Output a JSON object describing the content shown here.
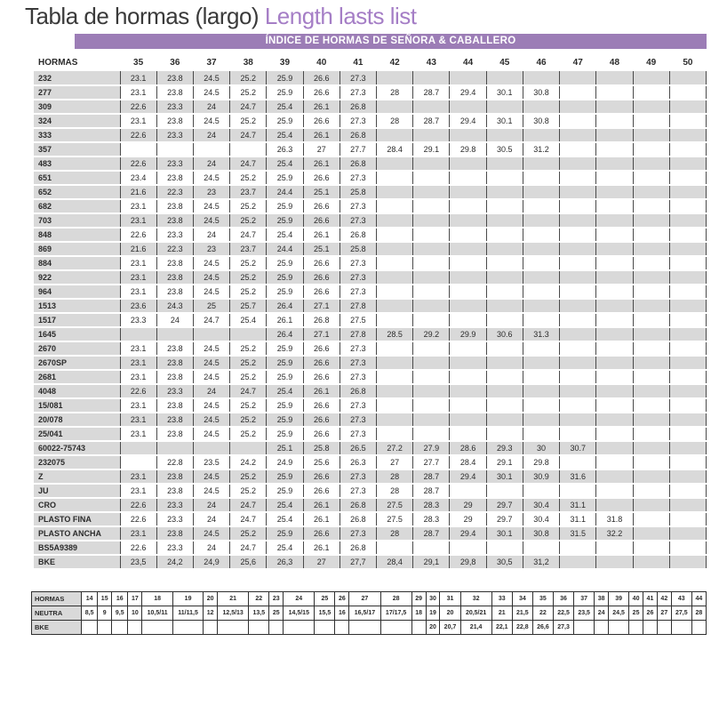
{
  "header": {
    "title_es": "Tabla de hormas (largo)",
    "title_en": "Length lasts list",
    "banner": "ÍNDICE DE HORMAS DE SEÑORA & CABALLERO"
  },
  "colors": {
    "banner_purple": "#9c7db6",
    "title_accent": "#a57ec6",
    "stripe_gray": "#d9d9d9"
  },
  "main_table": {
    "label_header": "HORMAS",
    "columns": [
      "35",
      "36",
      "37",
      "38",
      "39",
      "40",
      "41",
      "42",
      "43",
      "44",
      "45",
      "46",
      "47",
      "48",
      "49",
      "50"
    ],
    "rows": [
      {
        "label": "232",
        "values": [
          "23.1",
          "23.8",
          "24.5",
          "25.2",
          "25.9",
          "26.6",
          "27.3",
          "",
          "",
          "",
          "",
          "",
          "",
          "",
          "",
          ""
        ]
      },
      {
        "label": "277",
        "values": [
          "23.1",
          "23.8",
          "24.5",
          "25.2",
          "25.9",
          "26.6",
          "27.3",
          "28",
          "28.7",
          "29.4",
          "30.1",
          "30.8",
          "",
          "",
          "",
          ""
        ]
      },
      {
        "label": "309",
        "values": [
          "22.6",
          "23.3",
          "24",
          "24.7",
          "25.4",
          "26.1",
          "26.8",
          "",
          "",
          "",
          "",
          "",
          "",
          "",
          "",
          ""
        ]
      },
      {
        "label": "324",
        "values": [
          "23.1",
          "23.8",
          "24.5",
          "25.2",
          "25.9",
          "26.6",
          "27.3",
          "28",
          "28.7",
          "29.4",
          "30.1",
          "30.8",
          "",
          "",
          "",
          ""
        ]
      },
      {
        "label": "333",
        "values": [
          "22.6",
          "23.3",
          "24",
          "24.7",
          "25.4",
          "26.1",
          "26.8",
          "",
          "",
          "",
          "",
          "",
          "",
          "",
          "",
          ""
        ]
      },
      {
        "label": "357",
        "values": [
          "",
          "",
          "",
          "",
          "26.3",
          "27",
          "27.7",
          "28.4",
          "29.1",
          "29.8",
          "30.5",
          "31.2",
          "",
          "",
          "",
          ""
        ]
      },
      {
        "label": "483",
        "values": [
          "22.6",
          "23.3",
          "24",
          "24.7",
          "25.4",
          "26.1",
          "26.8",
          "",
          "",
          "",
          "",
          "",
          "",
          "",
          "",
          ""
        ]
      },
      {
        "label": "651",
        "values": [
          "23.4",
          "23.8",
          "24.5",
          "25.2",
          "25.9",
          "26.6",
          "27.3",
          "",
          "",
          "",
          "",
          "",
          "",
          "",
          "",
          ""
        ]
      },
      {
        "label": "652",
        "values": [
          "21.6",
          "22.3",
          "23",
          "23.7",
          "24.4",
          "25.1",
          "25.8",
          "",
          "",
          "",
          "",
          "",
          "",
          "",
          "",
          ""
        ]
      },
      {
        "label": "682",
        "values": [
          "23.1",
          "23.8",
          "24.5",
          "25.2",
          "25.9",
          "26.6",
          "27.3",
          "",
          "",
          "",
          "",
          "",
          "",
          "",
          "",
          ""
        ]
      },
      {
        "label": "703",
        "values": [
          "23.1",
          "23.8",
          "24.5",
          "25.2",
          "25.9",
          "26.6",
          "27.3",
          "",
          "",
          "",
          "",
          "",
          "",
          "",
          "",
          ""
        ]
      },
      {
        "label": "848",
        "values": [
          "22.6",
          "23.3",
          "24",
          "24.7",
          "25.4",
          "26.1",
          "26.8",
          "",
          "",
          "",
          "",
          "",
          "",
          "",
          "",
          ""
        ]
      },
      {
        "label": "869",
        "values": [
          "21.6",
          "22.3",
          "23",
          "23.7",
          "24.4",
          "25.1",
          "25.8",
          "",
          "",
          "",
          "",
          "",
          "",
          "",
          "",
          ""
        ]
      },
      {
        "label": "884",
        "values": [
          "23.1",
          "23.8",
          "24.5",
          "25.2",
          "25.9",
          "26.6",
          "27.3",
          "",
          "",
          "",
          "",
          "",
          "",
          "",
          "",
          ""
        ]
      },
      {
        "label": "922",
        "values": [
          "23.1",
          "23.8",
          "24.5",
          "25.2",
          "25.9",
          "26.6",
          "27.3",
          "",
          "",
          "",
          "",
          "",
          "",
          "",
          "",
          ""
        ]
      },
      {
        "label": "964",
        "values": [
          "23.1",
          "23.8",
          "24.5",
          "25.2",
          "25.9",
          "26.6",
          "27.3",
          "",
          "",
          "",
          "",
          "",
          "",
          "",
          "",
          ""
        ]
      },
      {
        "label": "1513",
        "values": [
          "23.6",
          "24.3",
          "25",
          "25.7",
          "26.4",
          "27.1",
          "27.8",
          "",
          "",
          "",
          "",
          "",
          "",
          "",
          "",
          ""
        ]
      },
      {
        "label": "1517",
        "values": [
          "23.3",
          "24",
          "24.7",
          "25.4",
          "26.1",
          "26.8",
          "27.5",
          "",
          "",
          "",
          "",
          "",
          "",
          "",
          "",
          ""
        ]
      },
      {
        "label": "1645",
        "values": [
          "",
          "",
          "",
          "",
          "26.4",
          "27.1",
          "27.8",
          "28.5",
          "29.2",
          "29.9",
          "30.6",
          "31.3",
          "",
          "",
          "",
          ""
        ]
      },
      {
        "label": "2670",
        "values": [
          "23.1",
          "23.8",
          "24.5",
          "25.2",
          "25.9",
          "26.6",
          "27.3",
          "",
          "",
          "",
          "",
          "",
          "",
          "",
          "",
          ""
        ]
      },
      {
        "label": "2670SP",
        "values": [
          "23.1",
          "23.8",
          "24.5",
          "25.2",
          "25.9",
          "26.6",
          "27.3",
          "",
          "",
          "",
          "",
          "",
          "",
          "",
          "",
          ""
        ]
      },
      {
        "label": "2681",
        "values": [
          "23.1",
          "23.8",
          "24.5",
          "25.2",
          "25.9",
          "26.6",
          "27.3",
          "",
          "",
          "",
          "",
          "",
          "",
          "",
          "",
          ""
        ]
      },
      {
        "label": "4048",
        "values": [
          "22.6",
          "23.3",
          "24",
          "24.7",
          "25.4",
          "26.1",
          "26.8",
          "",
          "",
          "",
          "",
          "",
          "",
          "",
          "",
          ""
        ]
      },
      {
        "label": "15/081",
        "values": [
          "23.1",
          "23.8",
          "24.5",
          "25.2",
          "25.9",
          "26.6",
          "27.3",
          "",
          "",
          "",
          "",
          "",
          "",
          "",
          "",
          ""
        ]
      },
      {
        "label": "20/078",
        "values": [
          "23.1",
          "23.8",
          "24.5",
          "25.2",
          "25.9",
          "26.6",
          "27.3",
          "",
          "",
          "",
          "",
          "",
          "",
          "",
          "",
          ""
        ]
      },
      {
        "label": "25/041",
        "values": [
          "23.1",
          "23.8",
          "24.5",
          "25.2",
          "25.9",
          "26.6",
          "27.3",
          "",
          "",
          "",
          "",
          "",
          "",
          "",
          "",
          ""
        ]
      },
      {
        "label": "60022-75743",
        "values": [
          "",
          "",
          "",
          "",
          "25.1",
          "25.8",
          "26.5",
          "27.2",
          "27.9",
          "28.6",
          "29.3",
          "30",
          "30.7",
          "",
          "",
          ""
        ]
      },
      {
        "label": "232075",
        "values": [
          "",
          "22.8",
          "23.5",
          "24.2",
          "24.9",
          "25.6",
          "26.3",
          "27",
          "27.7",
          "28.4",
          "29.1",
          "29.8",
          "",
          "",
          "",
          ""
        ]
      },
      {
        "label": "Z",
        "values": [
          "23.1",
          "23.8",
          "24.5",
          "25.2",
          "25.9",
          "26.6",
          "27.3",
          "28",
          "28.7",
          "29.4",
          "30.1",
          "30.9",
          "31.6",
          "",
          "",
          ""
        ]
      },
      {
        "label": "JU",
        "values": [
          "23.1",
          "23.8",
          "24.5",
          "25.2",
          "25.9",
          "26.6",
          "27.3",
          "28",
          "28.7",
          "",
          "",
          "",
          "",
          "",
          "",
          ""
        ]
      },
      {
        "label": "CRO",
        "values": [
          "22.6",
          "23.3",
          "24",
          "24.7",
          "25.4",
          "26.1",
          "26.8",
          "27.5",
          "28.3",
          "29",
          "29.7",
          "30.4",
          "31.1",
          "",
          "",
          ""
        ]
      },
      {
        "label": "PLASTO FINA",
        "values": [
          "22.6",
          "23.3",
          "24",
          "24.7",
          "25.4",
          "26.1",
          "26.8",
          "27.5",
          "28.3",
          "29",
          "29.7",
          "30.4",
          "31.1",
          "31.8",
          "",
          ""
        ]
      },
      {
        "label": "PLASTO ANCHA",
        "values": [
          "23.1",
          "23.8",
          "24.5",
          "25.2",
          "25.9",
          "26.6",
          "27.3",
          "28",
          "28.7",
          "29.4",
          "30.1",
          "30.8",
          "31.5",
          "32.2",
          "",
          ""
        ]
      },
      {
        "label": "BS5A9389",
        "values": [
          "22.6",
          "23.3",
          "24",
          "24.7",
          "25.4",
          "26.1",
          "26.8",
          "",
          "",
          "",
          "",
          "",
          "",
          "",
          "",
          ""
        ]
      },
      {
        "label": "BKE",
        "values": [
          "23,5",
          "24,2",
          "24,9",
          "25,6",
          "26,3",
          "27",
          "27,7",
          "28,4",
          "29,1",
          "29,8",
          "30,5",
          "31,2",
          "",
          "",
          "",
          ""
        ]
      }
    ]
  },
  "bottom_table": {
    "rows": [
      {
        "label": "HORMAS",
        "values": [
          "14",
          "15",
          "16",
          "17",
          "18",
          "19",
          "20",
          "21",
          "22",
          "23",
          "24",
          "25",
          "26",
          "27",
          "28",
          "29",
          "30",
          "31",
          "32",
          "33",
          "34",
          "35",
          "36",
          "37",
          "38",
          "39",
          "40",
          "41",
          "42",
          "43",
          "44"
        ]
      },
      {
        "label": "NEUTRA",
        "values": [
          "8,5",
          "9",
          "9,5",
          "10",
          "10,5/11",
          "11/11,5",
          "12",
          "12,5/13",
          "13,5",
          "25",
          "14,5/15",
          "15,5",
          "16",
          "16,5/17",
          "17/17,5",
          "18",
          "19",
          "20",
          "20,5/21",
          "21",
          "21,5",
          "22",
          "22,5",
          "23,5",
          "24",
          "24,5",
          "25",
          "26",
          "27",
          "27,5",
          "28"
        ]
      },
      {
        "label": "BKE",
        "values": [
          "",
          "",
          "",
          "",
          "",
          "",
          "",
          "",
          "",
          "",
          "",
          "",
          "",
          "",
          "",
          "",
          "20",
          "20,7",
          "21,4",
          "22,1",
          "22,8",
          "26,6",
          "27,3",
          "",
          "",
          "",
          "",
          "",
          "",
          "",
          ""
        ]
      }
    ]
  }
}
